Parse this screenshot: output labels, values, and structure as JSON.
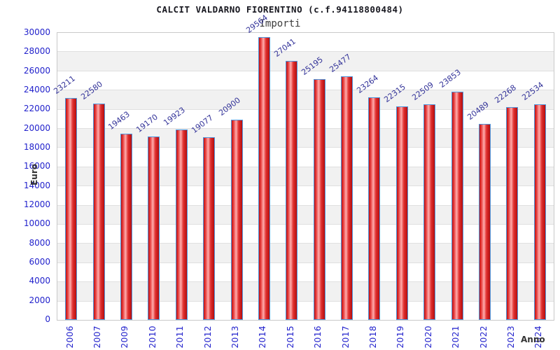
{
  "header": {
    "title": "CALCIT VALDARNO FIORENTINO (c.f.94118800484)",
    "subtitle": "Importi"
  },
  "colors": {
    "title_color": "#17171f",
    "subtitle_color": "#3c3c3c",
    "tick_color": "#2222cc",
    "value_label_color": "#333399",
    "bar_dark": "#c01010",
    "bar_light": "#ffacac",
    "bar_border": "#4f97dd",
    "band_gray": "#f1f1f1",
    "grid_line": "#e0e0e0",
    "plot_border": "#c9c9c9",
    "axis_title_color": "#333333"
  },
  "chart_data": {
    "type": "bar",
    "title": "CALCIT VALDARNO FIORENTINO (c.f.94118800484)",
    "subtitle": "Importi",
    "xlabel": "Anno",
    "ylabel": "Euro",
    "categories": [
      "2006",
      "2007",
      "2009",
      "2010",
      "2011",
      "2012",
      "2013",
      "2014",
      "2015",
      "2016",
      "2017",
      "2018",
      "2019",
      "2020",
      "2021",
      "2022",
      "2023",
      "2024"
    ],
    "values": [
      23211,
      22580,
      19463,
      19170,
      19923,
      19077,
      20900,
      29564,
      27041,
      25195,
      25477,
      23264,
      22315,
      22509,
      23853,
      20489,
      22268,
      22534
    ],
    "ylim": [
      0,
      30000
    ],
    "ytick_step": 2000,
    "grid": true,
    "legend": "none",
    "bar_labels_shown": true,
    "x_tick_rotation": -90,
    "bar_label_rotation": -37
  }
}
